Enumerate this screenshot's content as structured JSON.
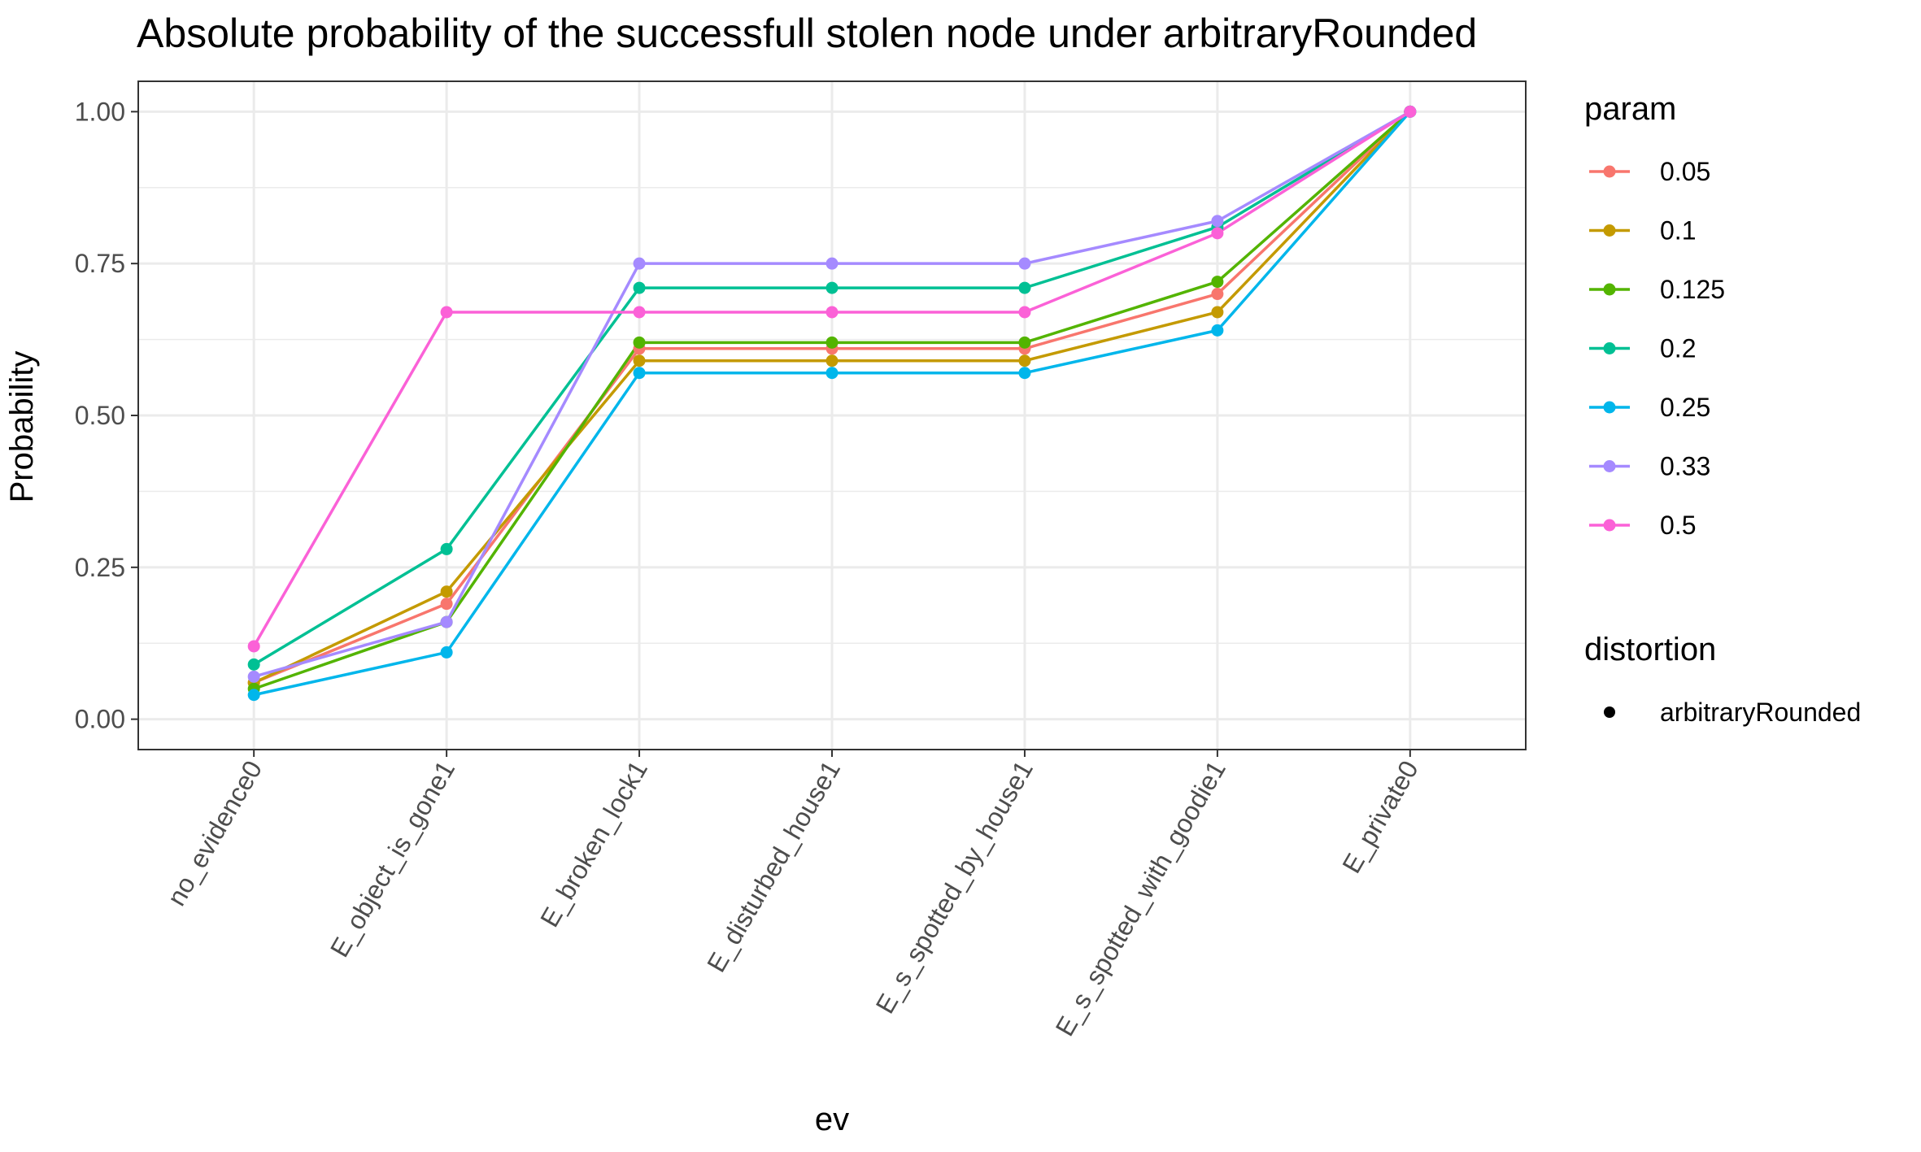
{
  "chart_data": {
    "type": "line",
    "title": "Absolute probability of the successfull stolen node under arbitraryRounded",
    "xlabel": "ev",
    "ylabel": "Probability",
    "categories": [
      "no_evidence0",
      "E_object_is_gone1",
      "E_broken_lock1",
      "E_disturbed_house1",
      "E_s_spotted_by_house1",
      "E_s_spotted_with_goodie1",
      "E_private0"
    ],
    "ylim": [
      0,
      1
    ],
    "yticks": [
      0.0,
      0.25,
      0.5,
      0.75,
      1.0
    ],
    "ytick_labels": [
      "0.00",
      "0.25",
      "0.50",
      "0.75",
      "1.00"
    ],
    "grid": true,
    "legend_position": "right",
    "legend_title": "param",
    "shape_legend_title": "distortion",
    "shape_legend_label": "arbitraryRounded",
    "series": [
      {
        "name": "0.05",
        "color": "#F8766D",
        "values": [
          0.06,
          0.19,
          0.61,
          0.61,
          0.61,
          0.7,
          1.0
        ]
      },
      {
        "name": "0.1",
        "color": "#C49A00",
        "values": [
          0.06,
          0.21,
          0.59,
          0.59,
          0.59,
          0.67,
          1.0
        ]
      },
      {
        "name": "0.125",
        "color": "#53B400",
        "values": [
          0.05,
          0.16,
          0.62,
          0.62,
          0.62,
          0.72,
          1.0
        ]
      },
      {
        "name": "0.2",
        "color": "#00C094",
        "values": [
          0.09,
          0.28,
          0.71,
          0.71,
          0.71,
          0.81,
          1.0
        ]
      },
      {
        "name": "0.25",
        "color": "#00B6EB",
        "values": [
          0.04,
          0.11,
          0.57,
          0.57,
          0.57,
          0.64,
          1.0
        ]
      },
      {
        "name": "0.33",
        "color": "#A58AFF",
        "values": [
          0.07,
          0.16,
          0.75,
          0.75,
          0.75,
          0.82,
          1.0
        ]
      },
      {
        "name": "0.5",
        "color": "#FB61D7",
        "values": [
          0.12,
          0.67,
          0.67,
          0.67,
          0.67,
          0.8,
          1.0
        ]
      }
    ]
  }
}
